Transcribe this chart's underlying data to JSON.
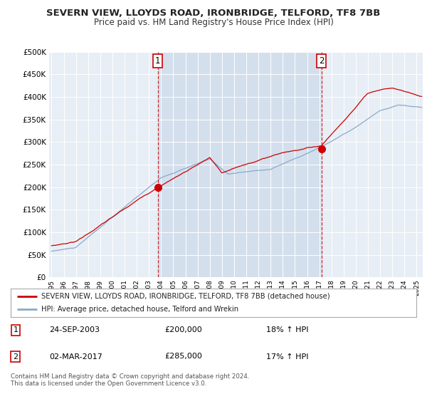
{
  "title": "SEVERN VIEW, LLOYDS ROAD, IRONBRIDGE, TELFORD, TF8 7BB",
  "subtitle": "Price paid vs. HM Land Registry's House Price Index (HPI)",
  "legend_line1": "SEVERN VIEW, LLOYDS ROAD, IRONBRIDGE, TELFORD, TF8 7BB (detached house)",
  "legend_line2": "HPI: Average price, detached house, Telford and Wrekin",
  "annotation1_label": "1",
  "annotation1_date": "24-SEP-2003",
  "annotation1_price": "£200,000",
  "annotation1_hpi": "18% ↑ HPI",
  "annotation2_label": "2",
  "annotation2_date": "02-MAR-2017",
  "annotation2_price": "£285,000",
  "annotation2_hpi": "17% ↑ HPI",
  "footer": "Contains HM Land Registry data © Crown copyright and database right 2024.\nThis data is licensed under the Open Government Licence v3.0.",
  "sale1_x": 2003.73,
  "sale1_y": 200000,
  "sale2_x": 2017.17,
  "sale2_y": 285000,
  "ylim": [
    0,
    500000
  ],
  "xlim": [
    1994.8,
    2025.5
  ],
  "red_color": "#cc0000",
  "blue_color": "#88aacc",
  "vline_color": "#cc0000",
  "background_color": "#ffffff",
  "plot_bg_color": "#e8eef5",
  "shade_color": "#ccdaeb"
}
